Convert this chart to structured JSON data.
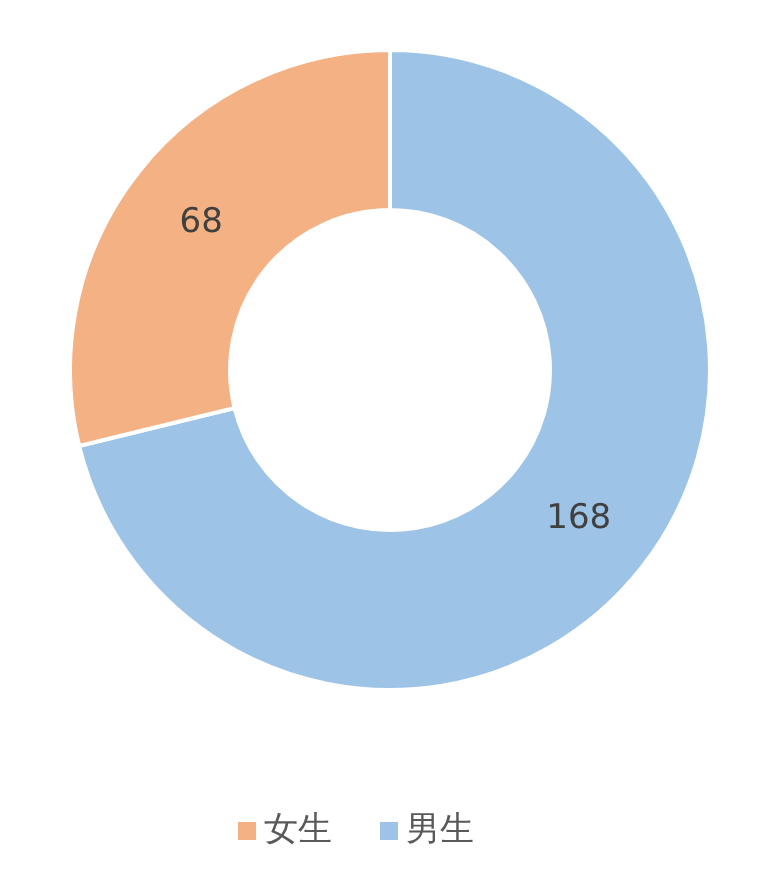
{
  "chart_data": {
    "type": "donut",
    "categories": [
      "男生",
      "女生"
    ],
    "values": [
      168,
      68
    ],
    "colors": [
      "#9dc3e6",
      "#f4b183"
    ],
    "data_labels": true,
    "legend": "bottom"
  }
}
